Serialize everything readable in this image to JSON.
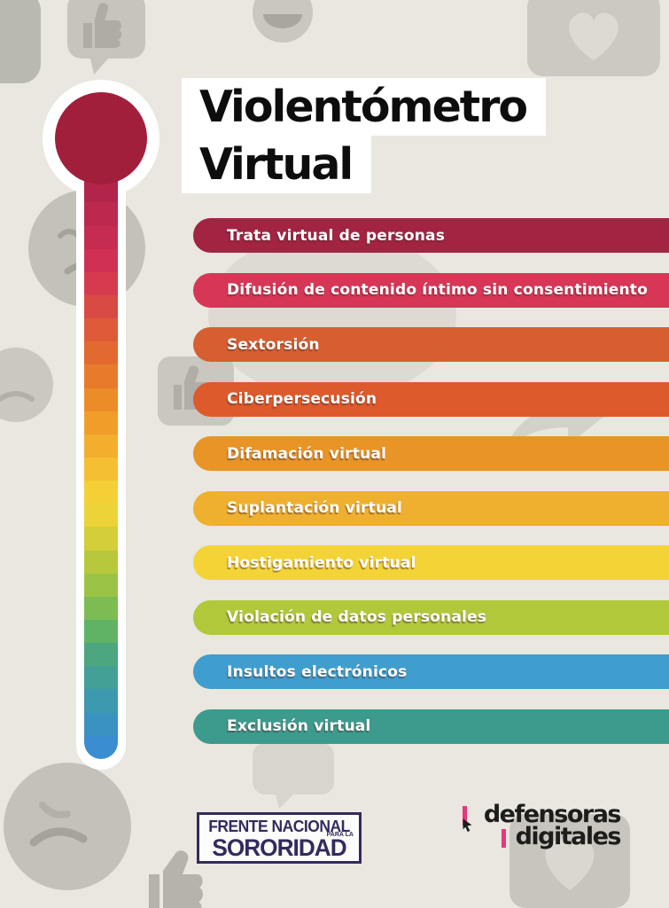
{
  "title": {
    "line1": "Violentómetro",
    "line2": "Virtual"
  },
  "bars": [
    {
      "label": "Trata virtual de personas",
      "color": "#a32342"
    },
    {
      "label": "Difusión de contenido íntimo sin consentimiento",
      "color": "#d73657"
    },
    {
      "label": "Sextorsión",
      "color": "#d65e31"
    },
    {
      "label": "Ciberpersecusión",
      "color": "#dc5a2b"
    },
    {
      "label": "Difamación virtual",
      "color": "#e89427"
    },
    {
      "label": "Suplantación virtual",
      "color": "#eeb02e"
    },
    {
      "label": "Hostigamiento virtual",
      "color": "#f4d336"
    },
    {
      "label": "Violación de datos personales",
      "color": "#b1c83b"
    },
    {
      "label": "Insultos electrónicos",
      "color": "#3f9ecd"
    },
    {
      "label": "Exclusión virtual",
      "color": "#3d9b8d"
    }
  ],
  "thermometer": {
    "bulb_color": "#a21f3c",
    "gradient": [
      "#a21f3c",
      "#a92244",
      "#b2254a",
      "#bc284e",
      "#c62c52",
      "#cf3053",
      "#d63a4f",
      "#da4a44",
      "#de5a38",
      "#e26a2f",
      "#e77b29",
      "#ec8c28",
      "#f09d2a",
      "#f3ae2e",
      "#f4bf32",
      "#f5cf36",
      "#ecd338",
      "#d3ce3a",
      "#b7c83d",
      "#9ac346",
      "#7cbc53",
      "#60b264",
      "#4ca77e",
      "#42a097",
      "#3d99ae",
      "#3a92c2",
      "#398dd0"
    ]
  },
  "background": {
    "color": "#e9e7e0",
    "icon_color": "#c6c4bc",
    "icons": [
      "thumbs-up-bubble",
      "laughing-face",
      "heart-card",
      "crying-face",
      "thumbs-up-card",
      "reply-arrow",
      "sad-face",
      "heart-card",
      "thumbs-up",
      "blob"
    ]
  },
  "footer": {
    "frente": {
      "line1": "FRENTE NACIONAL",
      "line2": "PARA LA",
      "line3": "SORORIDAD",
      "color": "#332b5c"
    },
    "defensoras": {
      "line1": "defensoras",
      "line2": "digitales",
      "text_color": "#1d1d1b",
      "accent_color": "#e23a7a"
    }
  }
}
